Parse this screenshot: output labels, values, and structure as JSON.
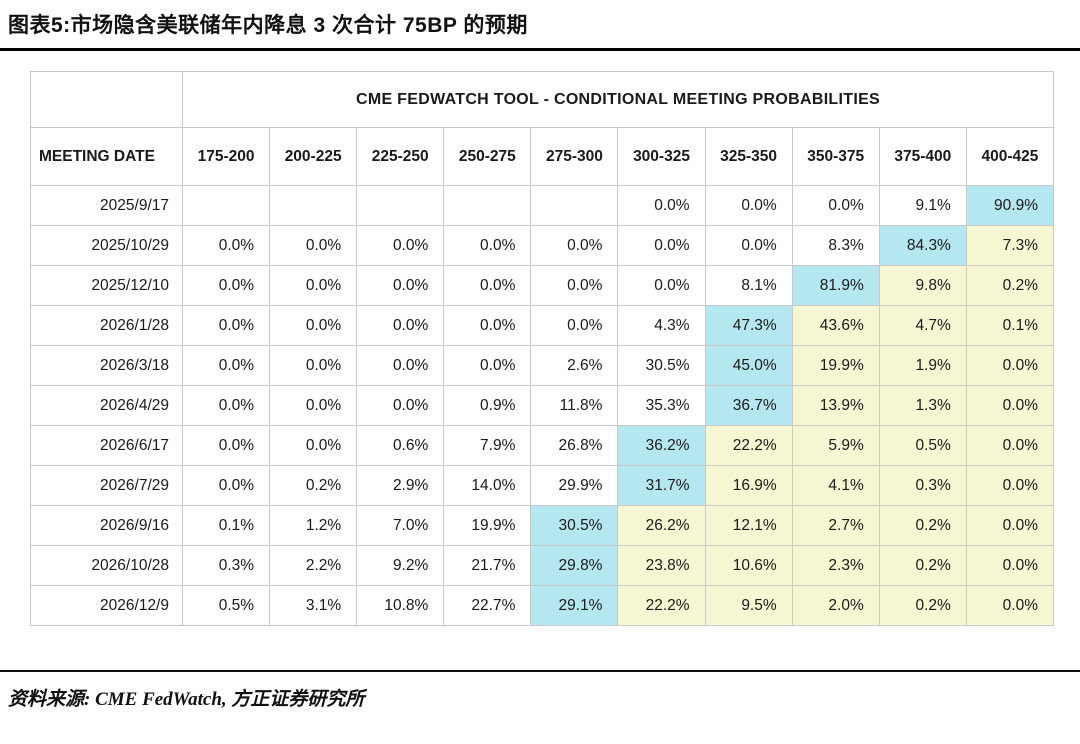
{
  "title": "图表5:市场隐含美联储年内降息 3 次合计 75BP 的预期",
  "source": "资料来源: CME FedWatch, 方正证券研究所",
  "colors": {
    "modal_highlight": "#b5e7f0",
    "tail_highlight": "#f6f6d2",
    "grid": "#c9c9c9"
  },
  "chart_data": {
    "type": "table",
    "title": "CME FEDWATCH TOOL - CONDITIONAL MEETING PROBABILITIES",
    "row_header": "MEETING DATE",
    "columns": [
      "175-200",
      "200-225",
      "225-250",
      "250-275",
      "275-300",
      "300-325",
      "325-350",
      "350-375",
      "375-400",
      "400-425"
    ],
    "rows": [
      {
        "date": "2025/9/17",
        "values": [
          "",
          "",
          "",
          "",
          "",
          "0.0%",
          "0.0%",
          "0.0%",
          "9.1%",
          "90.9%"
        ],
        "cyan_index": 9
      },
      {
        "date": "2025/10/29",
        "values": [
          "0.0%",
          "0.0%",
          "0.0%",
          "0.0%",
          "0.0%",
          "0.0%",
          "0.0%",
          "8.3%",
          "84.3%",
          "7.3%"
        ],
        "cyan_index": 8
      },
      {
        "date": "2025/12/10",
        "values": [
          "0.0%",
          "0.0%",
          "0.0%",
          "0.0%",
          "0.0%",
          "0.0%",
          "8.1%",
          "81.9%",
          "9.8%",
          "0.2%"
        ],
        "cyan_index": 7
      },
      {
        "date": "2026/1/28",
        "values": [
          "0.0%",
          "0.0%",
          "0.0%",
          "0.0%",
          "0.0%",
          "4.3%",
          "47.3%",
          "43.6%",
          "4.7%",
          "0.1%"
        ],
        "cyan_index": 6
      },
      {
        "date": "2026/3/18",
        "values": [
          "0.0%",
          "0.0%",
          "0.0%",
          "0.0%",
          "2.6%",
          "30.5%",
          "45.0%",
          "19.9%",
          "1.9%",
          "0.0%"
        ],
        "cyan_index": 6
      },
      {
        "date": "2026/4/29",
        "values": [
          "0.0%",
          "0.0%",
          "0.0%",
          "0.9%",
          "11.8%",
          "35.3%",
          "36.7%",
          "13.9%",
          "1.3%",
          "0.0%"
        ],
        "cyan_index": 6
      },
      {
        "date": "2026/6/17",
        "values": [
          "0.0%",
          "0.0%",
          "0.6%",
          "7.9%",
          "26.8%",
          "36.2%",
          "22.2%",
          "5.9%",
          "0.5%",
          "0.0%"
        ],
        "cyan_index": 5
      },
      {
        "date": "2026/7/29",
        "values": [
          "0.0%",
          "0.2%",
          "2.9%",
          "14.0%",
          "29.9%",
          "31.7%",
          "16.9%",
          "4.1%",
          "0.3%",
          "0.0%"
        ],
        "cyan_index": 5
      },
      {
        "date": "2026/9/16",
        "values": [
          "0.1%",
          "1.2%",
          "7.0%",
          "19.9%",
          "30.5%",
          "26.2%",
          "12.1%",
          "2.7%",
          "0.2%",
          "0.0%"
        ],
        "cyan_index": 4
      },
      {
        "date": "2026/10/28",
        "values": [
          "0.3%",
          "2.2%",
          "9.2%",
          "21.7%",
          "29.8%",
          "23.8%",
          "10.6%",
          "2.3%",
          "0.2%",
          "0.0%"
        ],
        "cyan_index": 4
      },
      {
        "date": "2026/12/9",
        "values": [
          "0.5%",
          "3.1%",
          "10.8%",
          "22.7%",
          "29.1%",
          "22.2%",
          "9.5%",
          "2.0%",
          "0.2%",
          "0.0%"
        ],
        "cyan_index": 4
      }
    ]
  }
}
